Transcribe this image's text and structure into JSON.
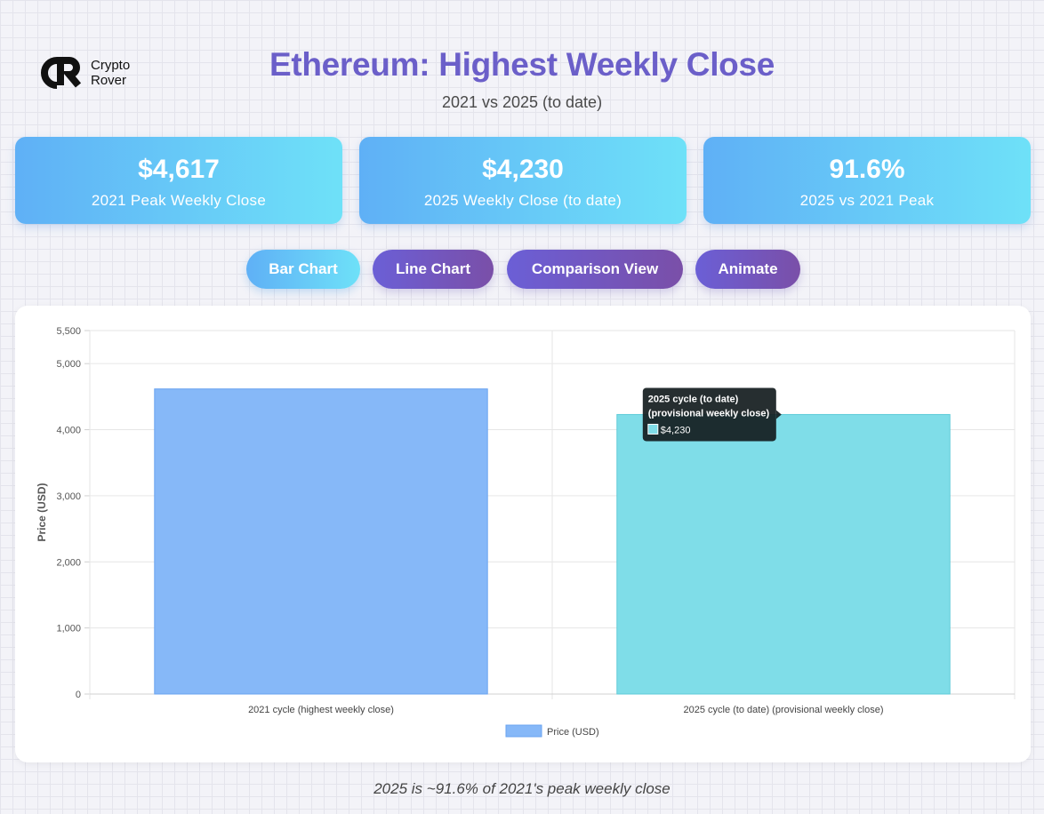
{
  "logo": {
    "line1": "Crypto",
    "line2": "Rover",
    "mark": "CR"
  },
  "header": {
    "title": "Ethereum: Highest Weekly Close",
    "subtitle": "2021 vs 2025 (to date)"
  },
  "stats": [
    {
      "value": "$4,617",
      "label": "2021 Peak Weekly Close"
    },
    {
      "value": "$4,230",
      "label": "2025 Weekly Close (to date)"
    },
    {
      "value": "91.6%",
      "label": "2025 vs 2021 Peak"
    }
  ],
  "controls": {
    "bar_chart": "Bar Chart",
    "line_chart": "Line Chart",
    "comparison_view": "Comparison View",
    "animate": "Animate",
    "active": "Bar Chart"
  },
  "chart_data": {
    "type": "bar",
    "categories": [
      "2021 cycle (highest weekly close)",
      "2025 cycle (to date) (provisional weekly close)"
    ],
    "series": [
      {
        "name": "Price (USD)",
        "values": [
          4617,
          4230
        ],
        "colors": [
          "#86b8f8",
          "#7fdde8"
        ]
      }
    ],
    "ylabel": "Price (USD)",
    "ylim": [
      0,
      5500
    ],
    "yticks": [
      0,
      1000,
      2000,
      3000,
      4000,
      5000,
      5500
    ],
    "ytick_labels": [
      "0",
      "1,000",
      "2,000",
      "3,000",
      "4,000",
      "5,000",
      "5,500"
    ],
    "grid": true,
    "legend": "bottom",
    "tooltip": {
      "title_line1": "2025 cycle (to date)",
      "title_line2": "(provisional weekly close)",
      "value": "$4,230",
      "category_index": 1
    }
  },
  "footer": {
    "note": "2025 is ~91.6% of 2021's peak weekly close"
  }
}
